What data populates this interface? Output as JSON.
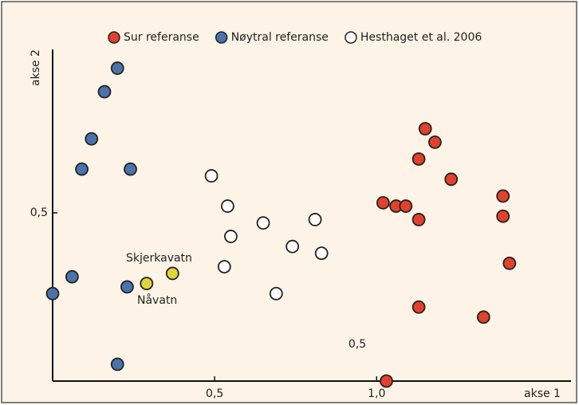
{
  "chart_data": {
    "type": "scatter",
    "x_label": "akse 1",
    "y_label": "akse 2",
    "xlim": [
      0,
      1.6
    ],
    "ylim": [
      0,
      1
    ],
    "xticks": [
      {
        "value": 0.5,
        "label": "0,5"
      },
      {
        "value": 1.0,
        "label": "1,0"
      }
    ],
    "yticks": [
      {
        "value": 0.5,
        "label": "0,5"
      }
    ],
    "annotations": [
      "0,5"
    ],
    "series": [
      {
        "name": "Sur referanse",
        "color": "#e2412b",
        "x": [
          1.15,
          1.18,
          1.13,
          1.23,
          1.02,
          1.06,
          1.09,
          1.13,
          1.39,
          1.39,
          1.41,
          1.13,
          1.33,
          1.03
        ],
        "y": [
          0.75,
          0.71,
          0.66,
          0.6,
          0.53,
          0.52,
          0.52,
          0.48,
          0.55,
          0.49,
          0.35,
          0.22,
          0.19,
          0.0
        ]
      },
      {
        "name": "Nøytral referanse",
        "color": "#4a73ac",
        "x": [
          0.0,
          0.06,
          0.09,
          0.12,
          0.16,
          0.2,
          0.24,
          0.23,
          0.2
        ],
        "y": [
          0.26,
          0.31,
          0.63,
          0.72,
          0.86,
          0.93,
          0.63,
          0.28,
          0.05
        ]
      },
      {
        "name": "Hesthaget et al. 2006",
        "color": "#ffffff",
        "x": [
          0.49,
          0.54,
          0.55,
          0.53,
          0.65,
          0.74,
          0.81,
          0.83,
          0.69
        ],
        "y": [
          0.61,
          0.52,
          0.43,
          0.34,
          0.47,
          0.4,
          0.48,
          0.38,
          0.26
        ]
      },
      {
        "color": "#e3d43b",
        "x": [
          0.29,
          0.37
        ],
        "y": [
          0.29,
          0.32
        ],
        "point_labels": [
          "Nåvatn",
          "Skjerkavatn"
        ]
      }
    ]
  }
}
